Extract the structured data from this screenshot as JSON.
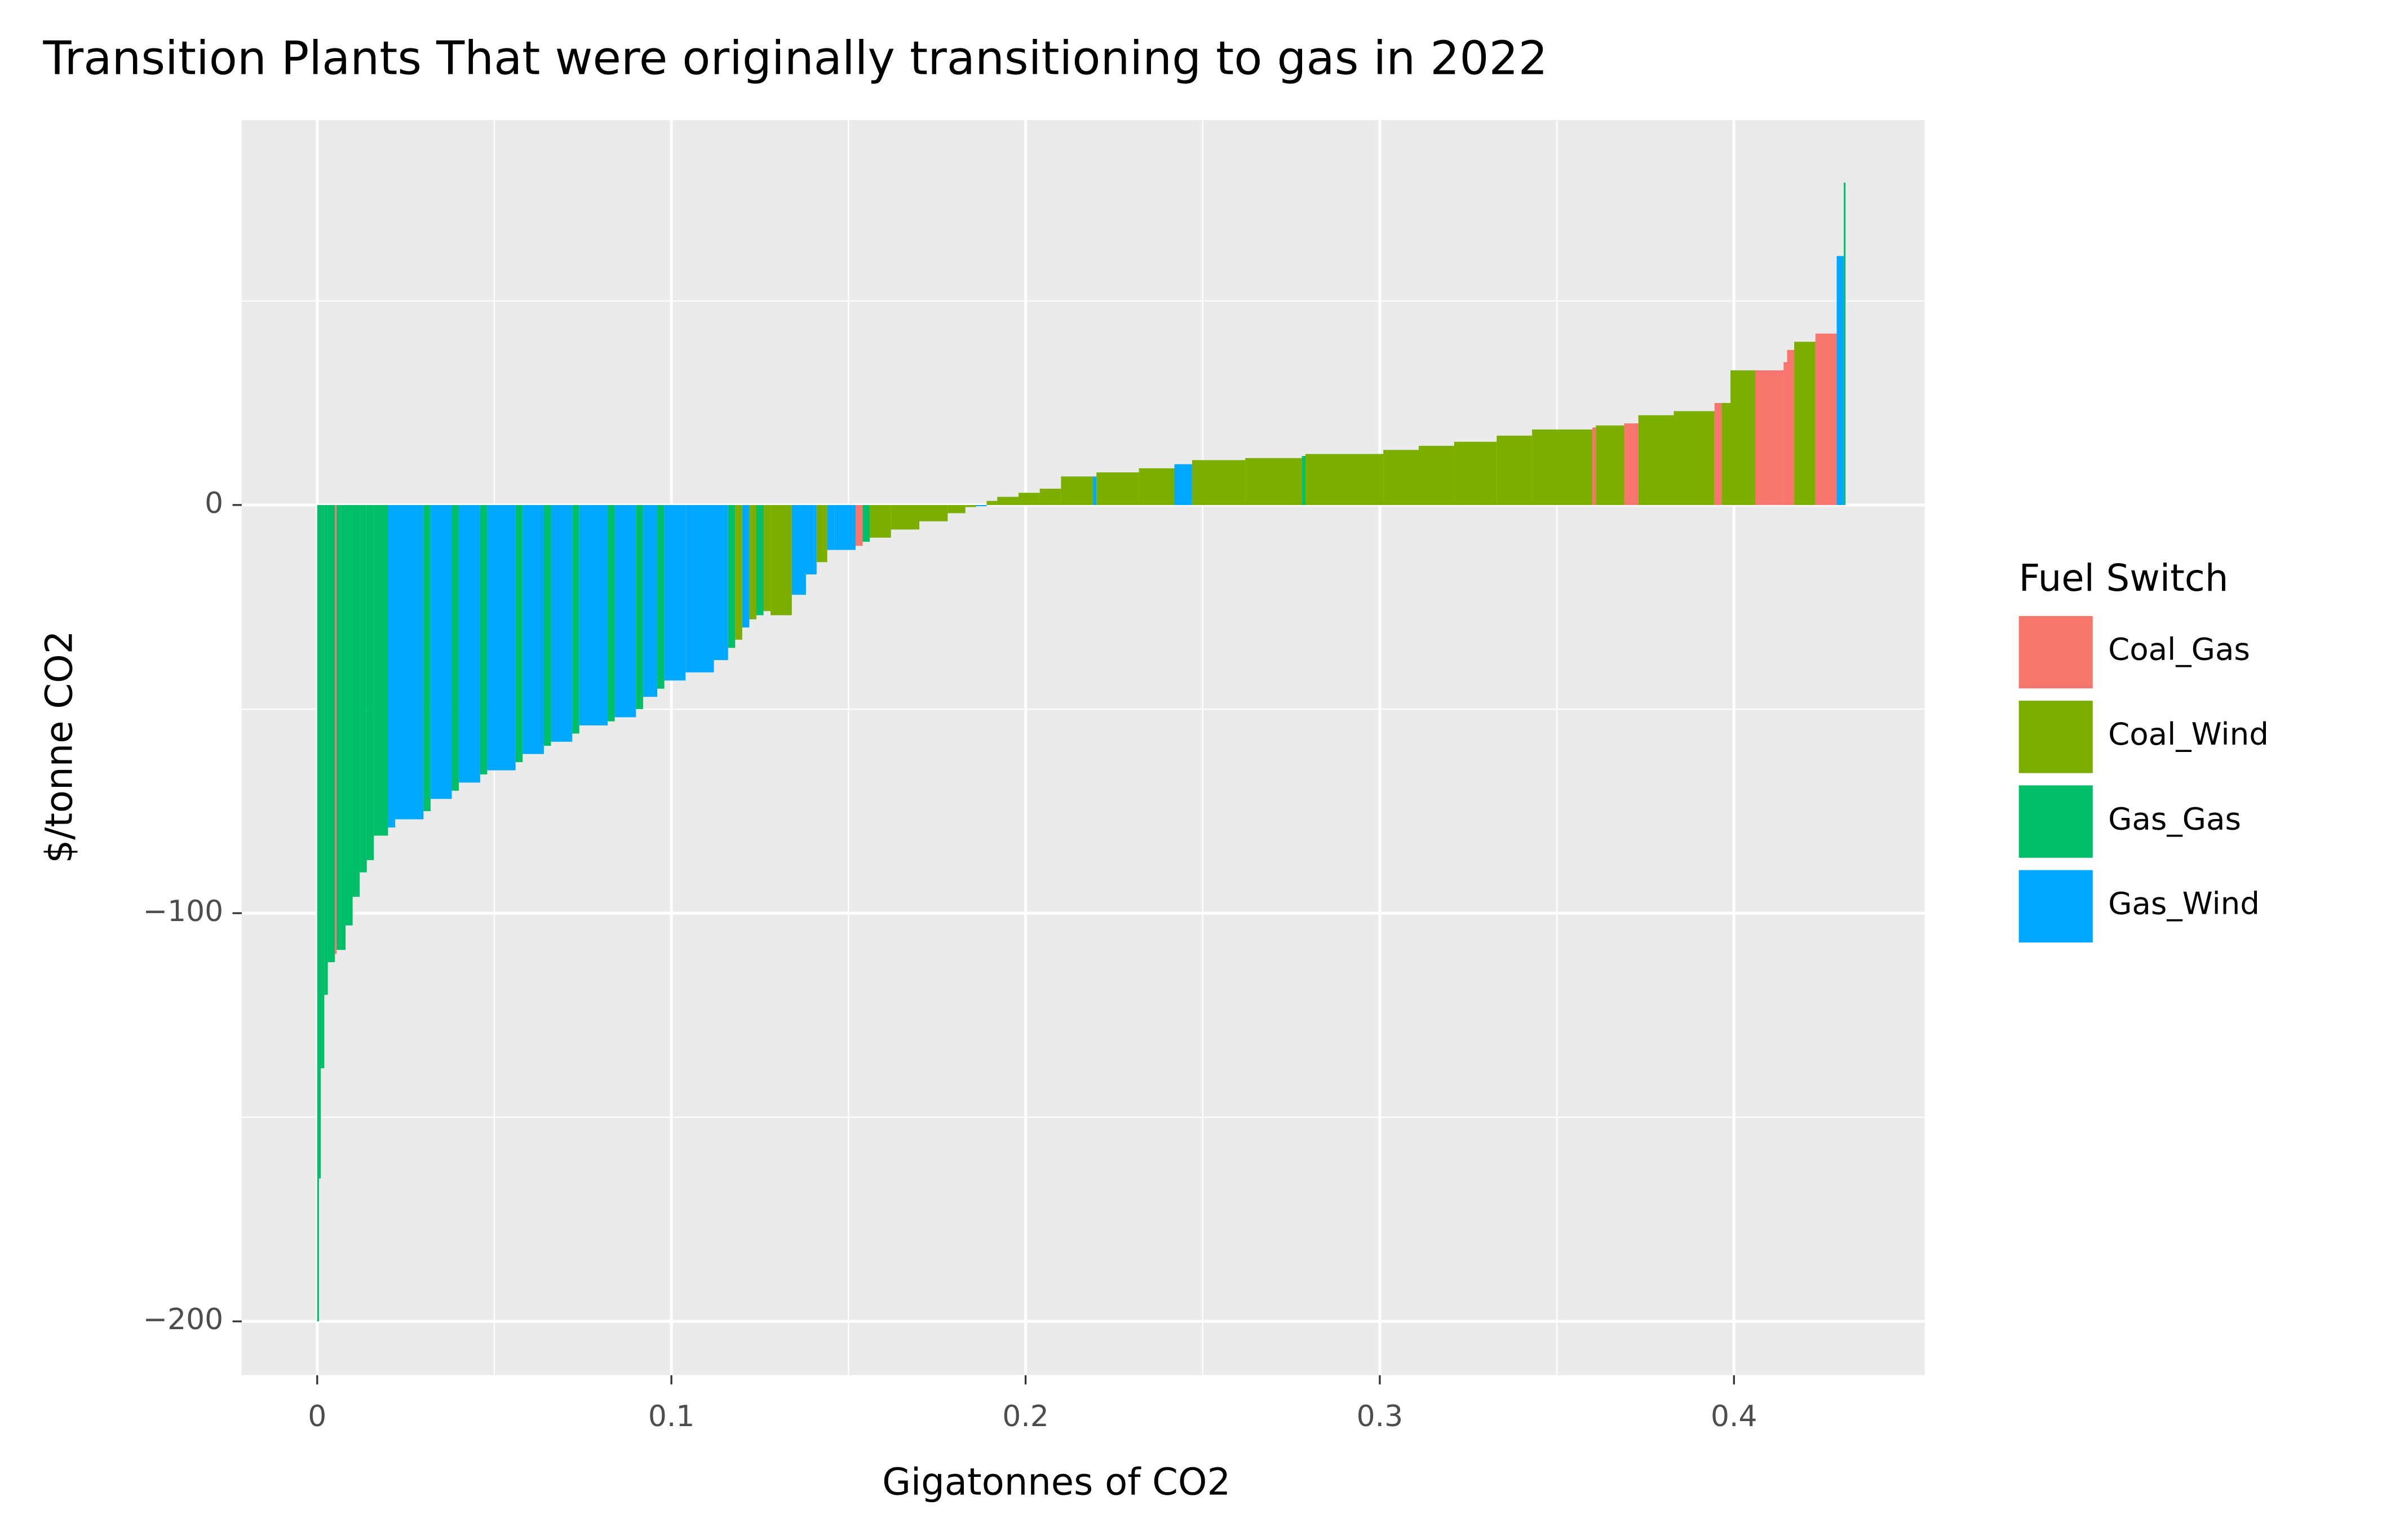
{
  "chart_data": {
    "type": "variable-width-bar",
    "title": "Transition Plants That were originally transitioning to gas in 2022",
    "x_label": "Gigatonnes of CO2",
    "y_label": "$/tonne CO2",
    "legend_title": "Fuel Switch",
    "legend_position": "right",
    "grid": true,
    "series": [
      {
        "name": "Coal_Gas",
        "color": "#F8766D"
      },
      {
        "name": "Coal_Wind",
        "color": "#7CAE00"
      },
      {
        "name": "Gas_Gas",
        "color": "#00BE67"
      },
      {
        "name": "Gas_Wind",
        "color": "#00A9FF"
      }
    ],
    "bars": {
      "fuel": [
        "Gas_Gas",
        "Gas_Gas",
        "Gas_Gas",
        "Gas_Gas",
        "Gas_Gas",
        "Coal_Gas",
        "Gas_Gas",
        "Gas_Gas",
        "Gas_Gas",
        "Gas_Gas",
        "Gas_Gas",
        "Gas_Gas",
        "Gas_Wind",
        "Gas_Wind",
        "Gas_Gas",
        "Gas_Wind",
        "Gas_Gas",
        "Gas_Wind",
        "Gas_Gas",
        "Gas_Wind",
        "Gas_Gas",
        "Gas_Wind",
        "Gas_Gas",
        "Gas_Wind",
        "Gas_Gas",
        "Gas_Wind",
        "Gas_Gas",
        "Gas_Wind",
        "Gas_Gas",
        "Gas_Wind",
        "Gas_Gas",
        "Gas_Wind",
        "Gas_Wind",
        "Gas_Wind",
        "Gas_Gas",
        "Coal_Wind",
        "Gas_Wind",
        "Coal_Wind",
        "Gas_Gas",
        "Coal_Wind",
        "Coal_Wind",
        "Gas_Wind",
        "Gas_Wind",
        "Coal_Wind",
        "Gas_Wind",
        "Gas_Wind",
        "Coal_Gas",
        "Gas_Gas",
        "Coal_Wind",
        "Coal_Wind",
        "Coal_Wind",
        "Coal_Wind",
        "Coal_Wind",
        "Gas_Wind",
        "Coal_Wind",
        "Coal_Wind",
        "Coal_Wind",
        "Coal_Wind",
        "Coal_Wind",
        "Gas_Wind",
        "Coal_Wind",
        "Coal_Wind",
        "Gas_Wind",
        "Coal_Wind",
        "Coal_Wind",
        "Gas_Gas",
        "Coal_Wind",
        "Coal_Wind",
        "Coal_Wind",
        "Coal_Wind",
        "Coal_Wind",
        "Coal_Wind",
        "Coal_Gas",
        "Coal_Wind",
        "Coal_Gas",
        "Coal_Wind",
        "Coal_Wind",
        "Coal_Gas",
        "Coal_Wind",
        "Coal_Wind",
        "Coal_Gas",
        "Coal_Gas",
        "Coal_Gas",
        "Coal_Wind",
        "Coal_Gas",
        "Gas_Wind",
        "Gas_Gas"
      ],
      "widths": [
        0.0005,
        0.0005,
        0.001,
        0.001,
        0.002,
        0.0005,
        0.0025,
        0.002,
        0.002,
        0.002,
        0.002,
        0.004,
        0.002,
        0.008,
        0.002,
        0.006,
        0.002,
        0.006,
        0.002,
        0.008,
        0.002,
        0.006,
        0.002,
        0.006,
        0.002,
        0.008,
        0.002,
        0.006,
        0.002,
        0.004,
        0.002,
        0.006,
        0.008,
        0.004,
        0.002,
        0.002,
        0.002,
        0.002,
        0.002,
        0.002,
        0.006,
        0.004,
        0.003,
        0.003,
        0.002,
        0.006,
        0.002,
        0.002,
        0.006,
        0.008,
        0.008,
        0.005,
        0.003,
        0.003,
        0.003,
        0.006,
        0.006,
        0.006,
        0.009,
        0.001,
        0.012,
        0.01,
        0.005,
        0.015,
        0.016,
        0.001,
        0.022,
        0.01,
        0.01,
        0.012,
        0.01,
        0.017,
        0.001,
        0.008,
        0.004,
        0.01,
        0.0115,
        0.002,
        0.0025,
        0.007,
        0.008,
        0.001,
        0.002,
        0.006,
        0.006,
        0.002,
        0.0005
      ],
      "values": [
        -200,
        -165,
        -138,
        -120,
        -112,
        -110,
        -109,
        -103,
        -96,
        -90,
        -87,
        -81,
        -79,
        -77,
        -75,
        -72,
        -70,
        -68,
        -66,
        -65,
        -63,
        -61,
        -59,
        -58,
        -56,
        -54,
        -53,
        -52,
        -50,
        -47,
        -45,
        -43,
        -41,
        -38,
        -35,
        -33,
        -30,
        -28,
        -27,
        -26,
        -27,
        -22,
        -17,
        -14,
        -11,
        -11,
        -10,
        -9,
        -8,
        -6,
        -4,
        -2,
        -0.5,
        -0.3,
        1,
        2,
        3,
        4,
        7,
        7,
        8,
        9,
        10,
        11,
        11.5,
        12,
        12.5,
        13.5,
        14.5,
        15.5,
        17,
        18.5,
        19,
        19.5,
        20,
        22,
        23,
        25,
        25,
        33,
        33,
        35,
        38,
        40,
        42,
        61,
        79
      ]
    },
    "xlim": [
      -0.0213,
      0.4539
    ],
    "xticks": [
      0,
      0.1,
      0.2,
      0.3,
      0.4
    ],
    "ylim": [
      -213.2,
      94.3
    ],
    "yticks": [
      {
        "value": -200,
        "label": "−200"
      },
      {
        "value": -100,
        "label": "−100"
      },
      0
    ]
  }
}
